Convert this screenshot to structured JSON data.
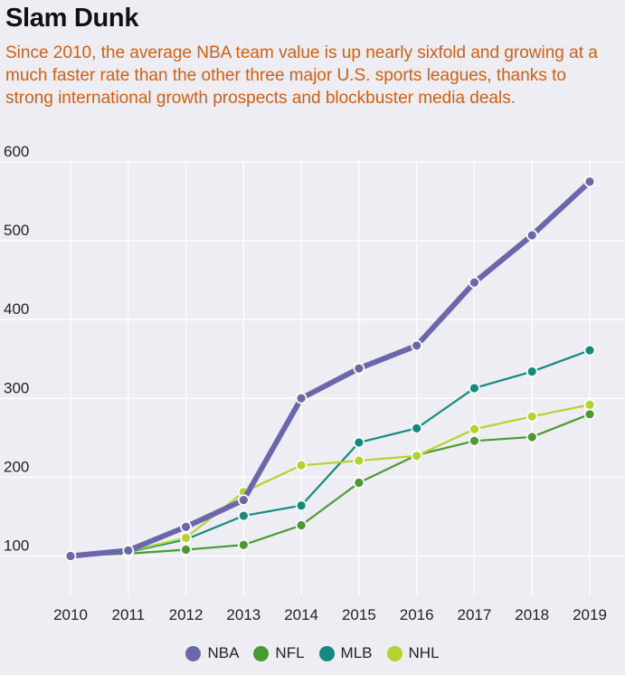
{
  "header": {
    "title": "Slam Dunk",
    "subtitle": "Since 2010, the average NBA team value is up nearly sixfold and growing at a much faster rate than the other three major U.S. sports leagues, thanks to strong international growth prospects and blockbuster media deals."
  },
  "chart_data": {
    "type": "line",
    "title": "Slam Dunk",
    "xlabel": "",
    "ylabel": "",
    "x": [
      "2010",
      "2011",
      "2012",
      "2013",
      "2014",
      "2015",
      "2016",
      "2017",
      "2018",
      "2019"
    ],
    "ylim": [
      50,
      600
    ],
    "yticks": [
      100,
      200,
      300,
      400,
      500,
      600
    ],
    "grid": true,
    "legend_position": "bottom-center",
    "series": [
      {
        "name": "NBA",
        "color": "#6b67ac",
        "values": [
          100,
          107,
          137,
          171,
          300,
          338,
          367,
          447,
          507,
          575
        ]
      },
      {
        "name": "NFL",
        "color": "#4a9a34",
        "values": [
          100,
          103,
          108,
          114,
          139,
          193,
          228,
          246,
          251,
          280
        ]
      },
      {
        "name": "MLB",
        "color": "#118b80",
        "values": [
          100,
          105,
          121,
          151,
          164,
          244,
          262,
          313,
          334,
          361
        ]
      },
      {
        "name": "NHL",
        "color": "#b3d32f",
        "values": [
          100,
          106,
          123,
          181,
          215,
          221,
          227,
          261,
          277,
          292
        ]
      }
    ]
  }
}
